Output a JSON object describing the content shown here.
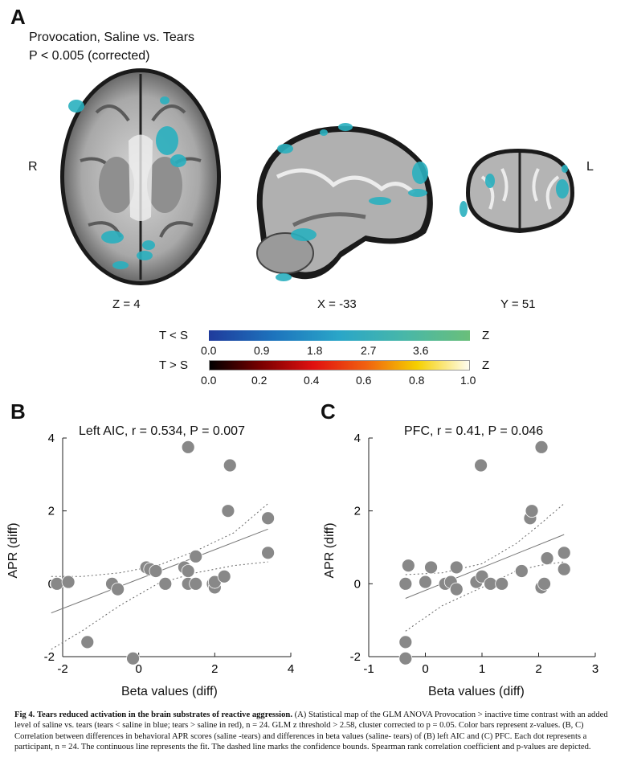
{
  "panelA": {
    "letter": "A",
    "title_line1": "Provocation, Saline vs. Tears",
    "title_line2": "P < 0.005 (corrected)",
    "side_left": "R",
    "side_right": "L",
    "slice_labels": [
      "Z = 4",
      "X = -33",
      "Y = 51"
    ],
    "colorbar_blue": {
      "label": "T < S",
      "unit": "Z",
      "ticks": [
        "0.0",
        "0.9",
        "1.8",
        "2.7",
        "3.6"
      ],
      "colors": [
        "#1f3b9c",
        "#1d74bd",
        "#2aa6c8",
        "#48b7a8",
        "#6abf7a"
      ]
    },
    "colorbar_red": {
      "label": "T > S",
      "unit": "Z",
      "ticks": [
        "0.0",
        "0.2",
        "0.4",
        "0.6",
        "0.8",
        "1.0"
      ],
      "colors": [
        "#000000",
        "#7a0000",
        "#e01010",
        "#f06010",
        "#f5d000",
        "#fffdf0"
      ]
    },
    "overlay_color": "#2ab0bf"
  },
  "chart_data": [
    {
      "type": "scatter",
      "letter": "B",
      "title": "Left AIC, r = 0.534, P = 0.007",
      "xlabel": "Beta values (diff)",
      "ylabel": "APR (diff)",
      "xlim": [
        -2,
        4
      ],
      "ylim": [
        -2,
        4
      ],
      "xticks": [
        -2,
        0,
        2,
        4
      ],
      "yticks": [
        -2,
        0,
        2,
        4
      ],
      "points": [
        [
          -2.15,
          0.0
        ],
        [
          -1.85,
          0.05
        ],
        [
          -1.35,
          -1.6
        ],
        [
          -0.7,
          0.0
        ],
        [
          -0.55,
          -0.15
        ],
        [
          -0.15,
          -2.05
        ],
        [
          0.2,
          0.45
        ],
        [
          0.3,
          0.4
        ],
        [
          0.7,
          0.0
        ],
        [
          1.2,
          0.45
        ],
        [
          1.3,
          3.75
        ],
        [
          1.3,
          0.35
        ],
        [
          1.5,
          0.75
        ],
        [
          1.3,
          0.0
        ],
        [
          1.5,
          0.0
        ],
        [
          1.95,
          0.0
        ],
        [
          2.0,
          -0.1
        ],
        [
          2.0,
          0.05
        ],
        [
          2.25,
          0.2
        ],
        [
          2.35,
          2.0
        ],
        [
          2.4,
          3.25
        ],
        [
          3.4,
          1.8
        ],
        [
          3.4,
          0.85
        ],
        [
          0.45,
          0.35
        ]
      ],
      "fit": [
        [
          -2.3,
          -0.8
        ],
        [
          3.4,
          1.5
        ]
      ],
      "ci_upper": [
        [
          -2.3,
          0.2
        ],
        [
          -1.5,
          0.2
        ],
        [
          -0.5,
          0.3
        ],
        [
          0.5,
          0.5
        ],
        [
          1.5,
          0.9
        ],
        [
          2.5,
          1.4
        ],
        [
          3.4,
          2.2
        ]
      ],
      "ci_lower": [
        [
          -2.3,
          -1.8
        ],
        [
          -1.5,
          -1.3
        ],
        [
          -0.5,
          -0.6
        ],
        [
          0.5,
          0.0
        ],
        [
          1.5,
          0.3
        ],
        [
          2.5,
          0.5
        ],
        [
          3.4,
          0.6
        ]
      ],
      "point_color": "#888888"
    },
    {
      "type": "scatter",
      "letter": "C",
      "title": "PFC, r = 0.41, P = 0.046",
      "xlabel": "Beta values (diff)",
      "ylabel": "APR (diff)",
      "xlim": [
        -1,
        3
      ],
      "ylim": [
        -2,
        4
      ],
      "xticks": [
        -1,
        0,
        1,
        2,
        3
      ],
      "yticks": [
        -2,
        0,
        2,
        4
      ],
      "points": [
        [
          -0.35,
          0.0
        ],
        [
          -0.3,
          0.5
        ],
        [
          -0.35,
          -1.6
        ],
        [
          -0.35,
          -2.05
        ],
        [
          0.0,
          0.05
        ],
        [
          0.1,
          0.45
        ],
        [
          0.35,
          0.0
        ],
        [
          0.45,
          0.05
        ],
        [
          0.55,
          0.45
        ],
        [
          0.55,
          -0.15
        ],
        [
          0.9,
          0.05
        ],
        [
          1.0,
          0.2
        ],
        [
          0.98,
          3.25
        ],
        [
          1.15,
          0.0
        ],
        [
          1.35,
          0.0
        ],
        [
          1.7,
          0.35
        ],
        [
          1.85,
          1.8
        ],
        [
          1.88,
          2.0
        ],
        [
          2.05,
          3.75
        ],
        [
          2.05,
          -0.1
        ],
        [
          2.1,
          0.0
        ],
        [
          2.15,
          0.7
        ],
        [
          2.45,
          0.4
        ],
        [
          2.45,
          0.85
        ]
      ],
      "fit": [
        [
          -0.35,
          -0.4
        ],
        [
          2.45,
          1.35
        ]
      ],
      "ci_upper": [
        [
          -0.35,
          0.25
        ],
        [
          0.3,
          0.3
        ],
        [
          1.0,
          0.55
        ],
        [
          1.6,
          1.1
        ],
        [
          2.0,
          1.6
        ],
        [
          2.45,
          2.2
        ]
      ],
      "ci_lower": [
        [
          -0.35,
          -1.3
        ],
        [
          0.3,
          -0.6
        ],
        [
          1.0,
          -0.1
        ],
        [
          1.6,
          0.35
        ],
        [
          2.0,
          0.5
        ],
        [
          2.45,
          0.6
        ]
      ],
      "point_color": "#888888"
    }
  ],
  "caption": {
    "fig": "Fig 4.",
    "bold_title": "Tears reduced activation in the brain substrates of reactive aggression.",
    "text": "(A) Statistical map of the GLM ANOVA Provocation > inactive time contrast with an added level of saline vs. tears (tears < saline in blue; tears > saline in red), n = 24. GLM z threshold > 2.58, cluster corrected to p = 0.05. Color bars represent z-values. (B, C) Correlation between differences in behavioral APR scores (saline -tears) and differences in beta values (saline- tears) of (B) left AIC and (C) PFC. Each dot represents a participant, n = 24. The continuous line represents the fit. The dashed line marks the confidence bounds. Spearman rank correlation coefficient and p-values are depicted."
  }
}
